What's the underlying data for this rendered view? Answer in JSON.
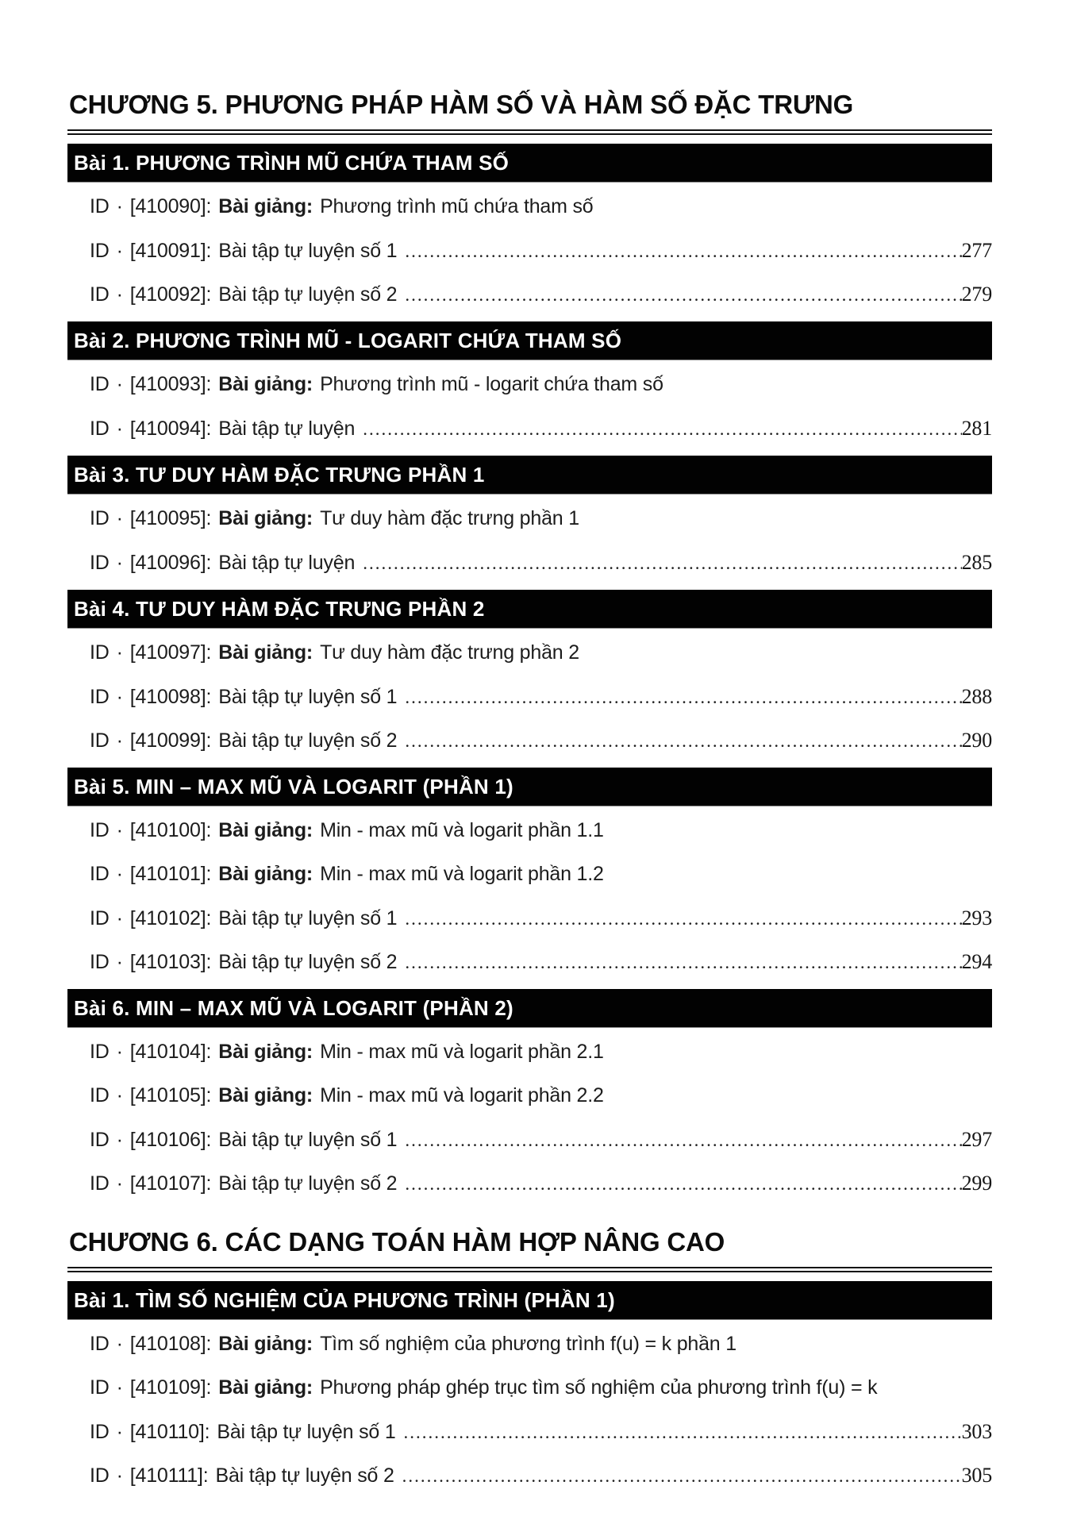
{
  "document": {
    "row_prefix": "ID",
    "row_separator": "·",
    "chapters": [
      {
        "title": "CHƯƠNG 5. PHƯƠNG PHÁP HÀM SỐ VÀ HÀM SỐ ĐẶC TRƯNG",
        "sections": [
          {
            "title": "Bài 1. PHƯƠNG TRÌNH MŨ CHỨA THAM SỐ",
            "entries": [
              {
                "code": "[410090]:",
                "type_label": "Bài giảng:",
                "title": "Phương trình mũ chứa tham số",
                "page": null
              },
              {
                "code": "[410091]:",
                "type_label": null,
                "title": "Bài tập tự luyện số 1",
                "page": "277"
              },
              {
                "code": "[410092]:",
                "type_label": null,
                "title": "Bài tập tự luyện số 2",
                "page": "279"
              }
            ]
          },
          {
            "title": "Bài 2. PHƯƠNG TRÌNH MŨ - LOGARIT CHỨA THAM SỐ",
            "entries": [
              {
                "code": "[410093]:",
                "type_label": "Bài giảng:",
                "title": "Phương trình mũ - logarit chứa tham số",
                "page": null
              },
              {
                "code": "[410094]:",
                "type_label": null,
                "title": "Bài tập tự luyện",
                "page": "281"
              }
            ]
          },
          {
            "title": "Bài 3. TƯ DUY HÀM ĐẶC TRƯNG PHẦN 1",
            "entries": [
              {
                "code": "[410095]:",
                "type_label": "Bài giảng:",
                "title": "Tư duy hàm đặc trưng phần 1",
                "page": null
              },
              {
                "code": "[410096]:",
                "type_label": null,
                "title": "Bài tập tự luyện",
                "page": "285"
              }
            ]
          },
          {
            "title": "Bài 4. TƯ DUY HÀM ĐẶC TRƯNG PHẦN 2",
            "entries": [
              {
                "code": "[410097]:",
                "type_label": "Bài giảng:",
                "title": "Tư duy hàm đặc trưng phần 2",
                "page": null
              },
              {
                "code": "[410098]:",
                "type_label": null,
                "title": "Bài tập tự luyện số 1",
                "page": "288"
              },
              {
                "code": "[410099]:",
                "type_label": null,
                "title": "Bài tập tự luyện số 2",
                "page": "290"
              }
            ]
          },
          {
            "title": "Bài 5. MIN – MAX MŨ VÀ LOGARIT (PHẦN 1)",
            "entries": [
              {
                "code": "[410100]:",
                "type_label": "Bài giảng:",
                "title": "Min - max mũ và logarit phần 1.1",
                "page": null
              },
              {
                "code": "[410101]:",
                "type_label": "Bài giảng:",
                "title": "Min - max mũ và logarit phần 1.2",
                "page": null
              },
              {
                "code": "[410102]:",
                "type_label": null,
                "title": "Bài tập tự luyện số 1",
                "page": "293"
              },
              {
                "code": "[410103]:",
                "type_label": null,
                "title": "Bài tập tự luyện số 2",
                "page": "294"
              }
            ]
          },
          {
            "title": "Bài 6. MIN – MAX MŨ VÀ LOGARIT (PHẦN 2)",
            "entries": [
              {
                "code": "[410104]:",
                "type_label": "Bài giảng:",
                "title": "Min - max mũ và logarit phần 2.1",
                "page": null
              },
              {
                "code": "[410105]:",
                "type_label": "Bài giảng:",
                "title": "Min - max mũ và logarit phần 2.2",
                "page": null
              },
              {
                "code": "[410106]:",
                "type_label": null,
                "title": "Bài tập tự luyện số 1",
                "page": "297"
              },
              {
                "code": "[410107]:",
                "type_label": null,
                "title": "Bài tập tự luyện số 2",
                "page": "299"
              }
            ]
          }
        ]
      },
      {
        "title": "CHƯƠNG 6. CÁC DẠNG TOÁN HÀM HỢP NÂNG CAO",
        "sections": [
          {
            "title": "Bài 1. TÌM SỐ NGHIỆM CỦA PHƯƠNG TRÌNH (PHẦN 1)",
            "entries": [
              {
                "code": "[410108]:",
                "type_label": "Bài giảng:",
                "title": "Tìm số nghiệm của phương trình f(u) = k phần 1",
                "page": null
              },
              {
                "code": "[410109]:",
                "type_label": "Bài giảng:",
                "title": "Phương pháp ghép trục tìm số nghiệm của phương trình f(u) = k",
                "page": null
              },
              {
                "code": "[410110]:",
                "type_label": null,
                "title": "Bài tập tự luyện số 1",
                "page": "303"
              },
              {
                "code": "[410111]:",
                "type_label": null,
                "title": "Bài tập tự luyện số 2",
                "page": "305"
              }
            ]
          }
        ]
      }
    ]
  }
}
